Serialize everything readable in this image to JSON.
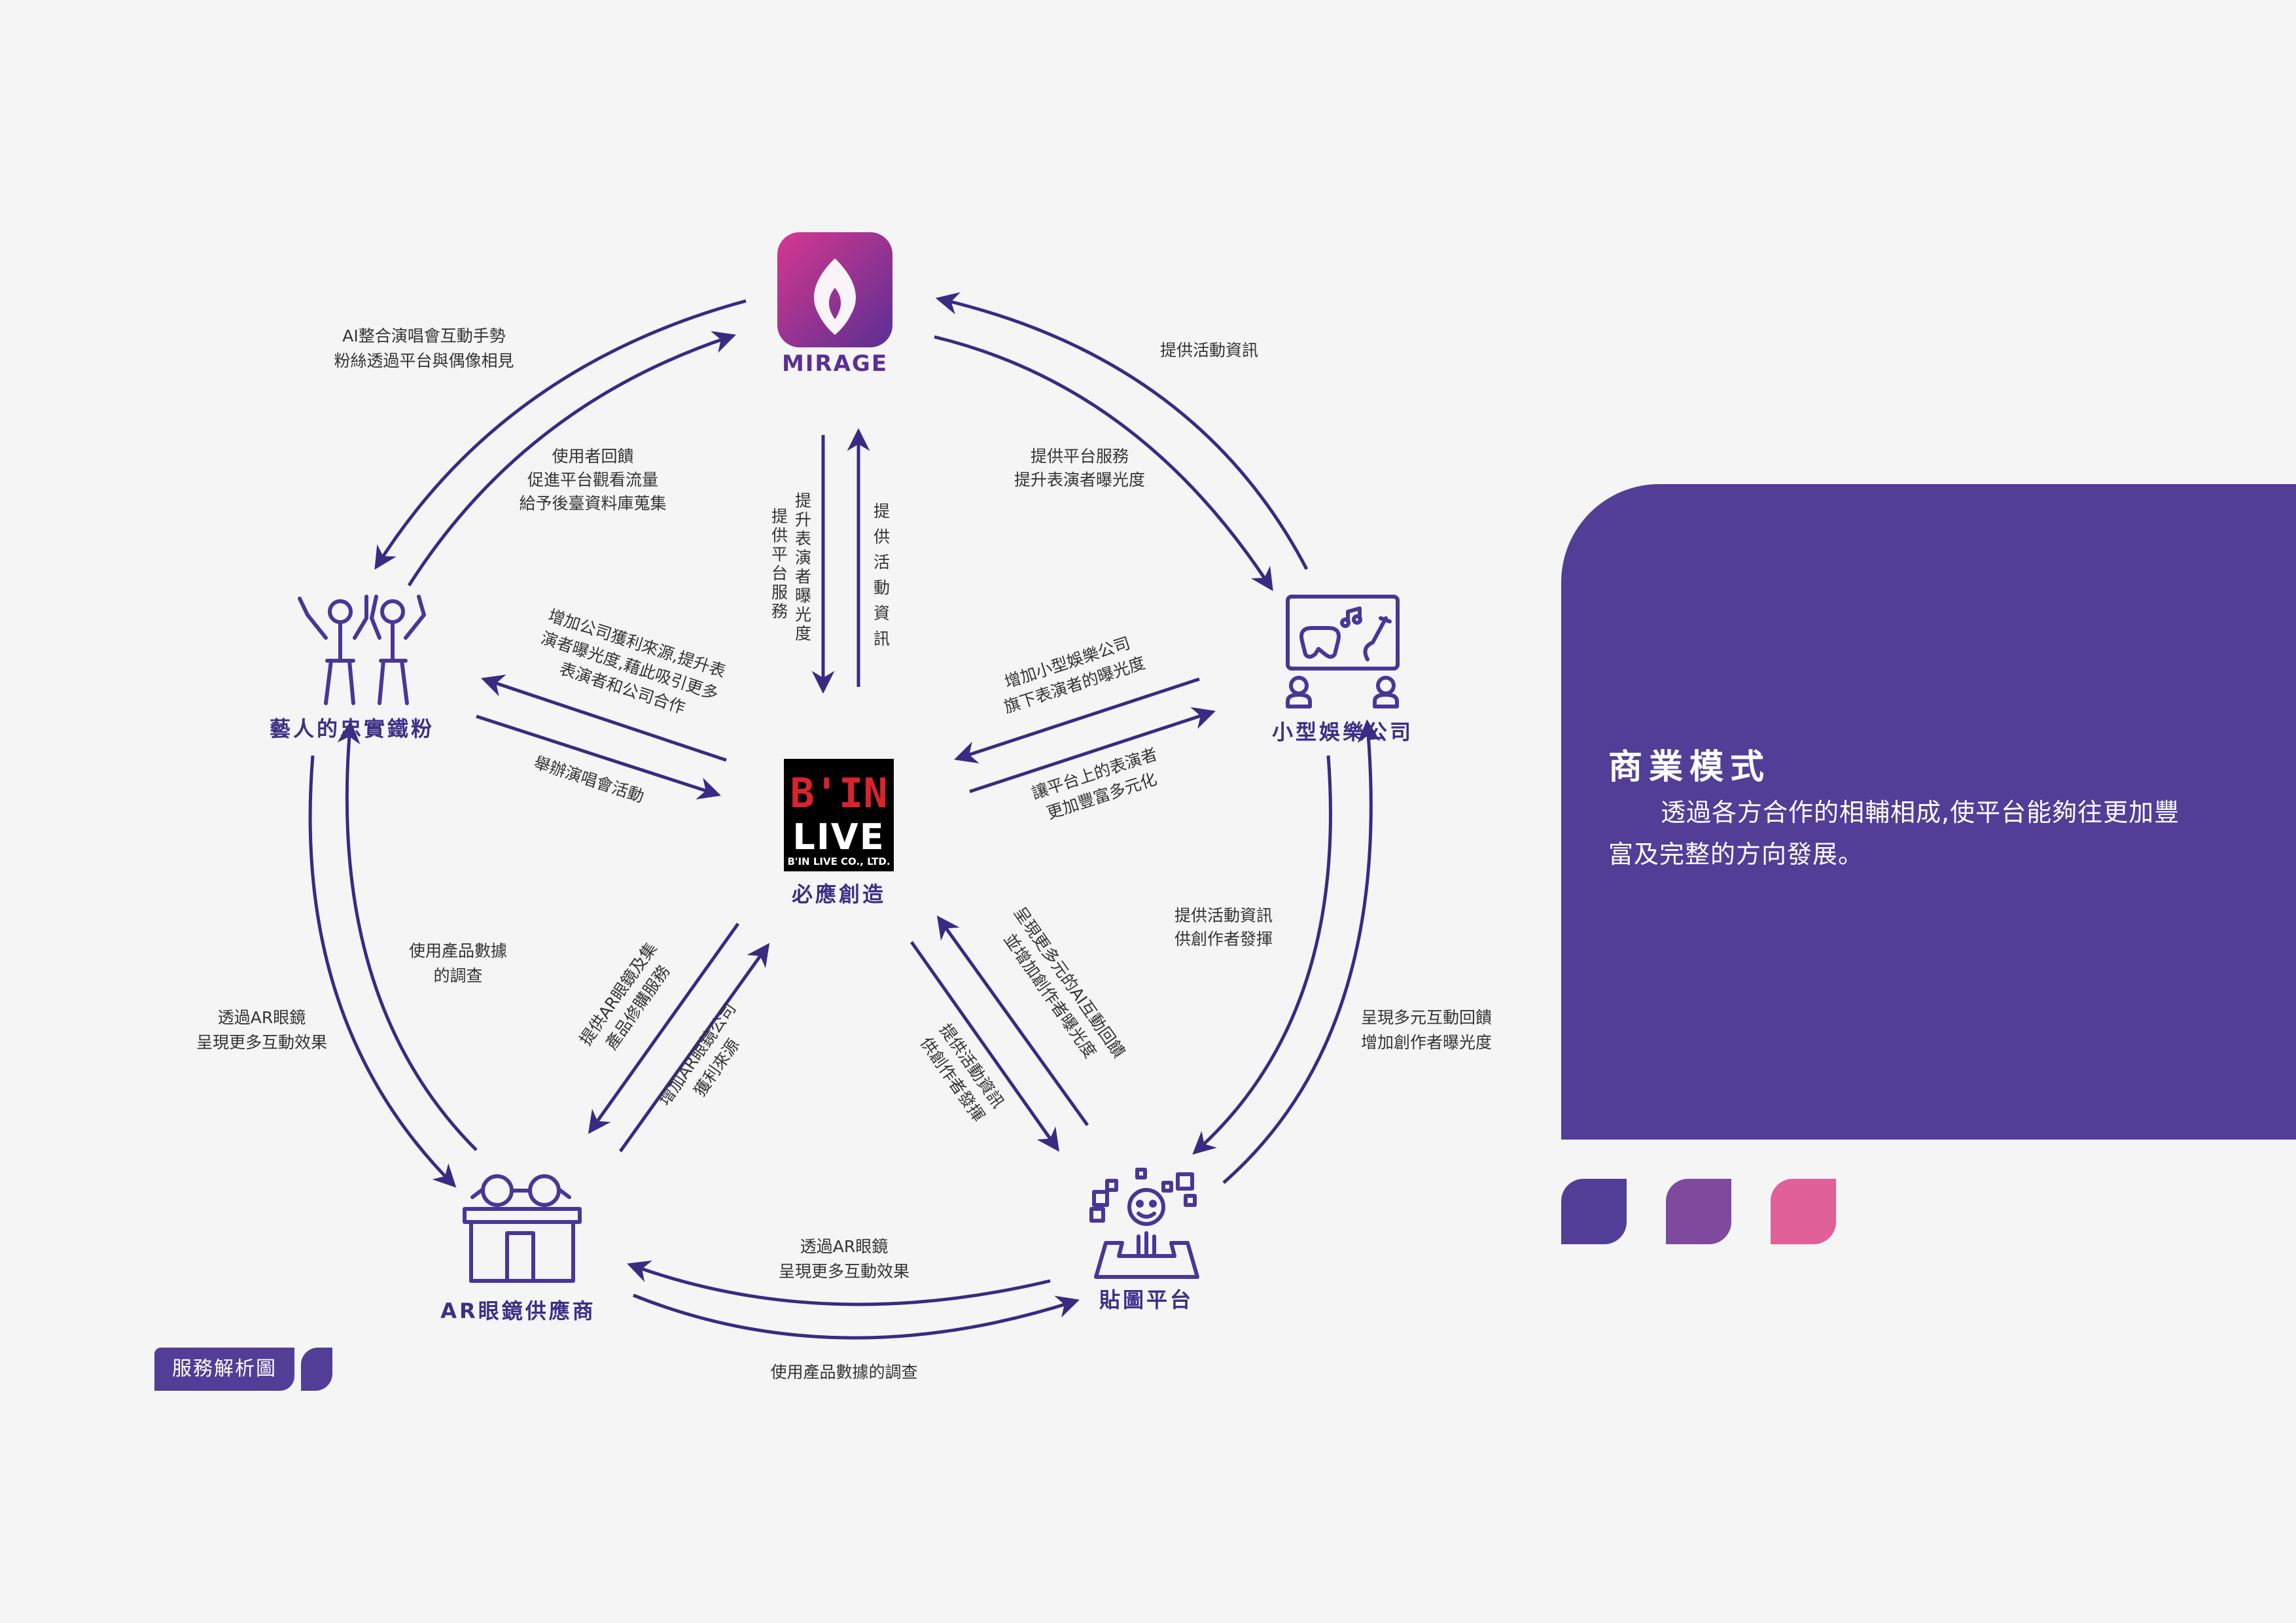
{
  "nodes": {
    "mirage": {
      "label": "MIRAGE"
    },
    "center": {
      "logo_line1": "B'IN",
      "logo_line2": "LIVE",
      "logo_line3": "B'IN LIVE CO., LTD.",
      "label": "必應創造"
    },
    "fans": {
      "label": "藝人的忠實鐵粉"
    },
    "ent_company": {
      "label": "小型娛樂公司"
    },
    "ar_supplier": {
      "label": "AR眼鏡供應商"
    },
    "sticker_platform": {
      "label": "貼圖平台"
    }
  },
  "edges": {
    "fans_to_mirage": [
      "AI整合演唱會互動手勢",
      "粉絲透過平台與偶像相見"
    ],
    "mirage_to_fans": [
      "使用者回饋",
      "促進平台觀看流量",
      "給予後臺資料庫蒐集"
    ],
    "mirage_to_center": "提升表演者曝光度",
    "mirage_to_center_2": "提供平台服務",
    "center_to_mirage": "提供活動資訊",
    "mirage_to_company": [
      "提供平台服務",
      "提升表演者曝光度"
    ],
    "company_to_mirage": "提供活動資訊",
    "center_to_fans": [
      "增加公司獲利來源,提升表",
      "演者曝光度,藉此吸引更多",
      "表演者和公司合作"
    ],
    "fans_to_center": "舉辦演唱會活動",
    "company_to_center": [
      "增加小型娛樂公司",
      "旗下表演者的曝光度"
    ],
    "center_to_company": [
      "讓平台上的表演者",
      "更加豐富多元化"
    ],
    "company_to_sticker": [
      "提供活動資訊",
      "供創作者發揮"
    ],
    "sticker_to_company": [
      "呈現多元互動回饋",
      "增加創作者曝光度"
    ],
    "fans_to_ar": [
      "透過AR眼鏡",
      "呈現更多互動效果"
    ],
    "ar_to_fans": [
      "使用產品數據",
      "的調查"
    ],
    "center_to_ar": [
      "提供AR眼鏡及集",
      "產品修購服務"
    ],
    "ar_to_center": [
      "增加AR眼鏡公司",
      "獲利來源"
    ],
    "center_to_sticker": [
      "提供活動資訊",
      "供創作者發揮"
    ],
    "sticker_to_center": [
      "呈現更多元的AI互動回饋",
      "並增加創作者曝光度"
    ],
    "ar_to_sticker": [
      "透過AR眼鏡",
      "呈現更多互動效果"
    ],
    "sticker_to_ar": "使用產品數據的調查"
  },
  "info": {
    "title": "商業模式",
    "body": "透過各方合作的相輔相成,使平台能夠往更加豐富及完整的方向發展。"
  },
  "palette": {
    "primary": "#523e96",
    "swatches": [
      "#523e96",
      "#7f4a9d",
      "#e0609a"
    ]
  },
  "footer": {
    "tag": "服務解析圖"
  }
}
